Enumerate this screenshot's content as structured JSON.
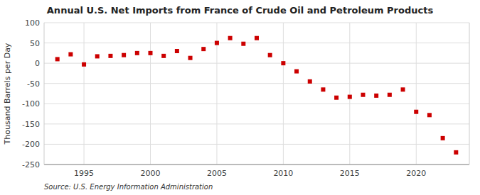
{
  "chart_data": {
    "type": "scatter",
    "title": "Annual U.S. Net Imports from France of Crude Oil and Petroleum Products",
    "y_label": "Thousand Barrels per Day",
    "source": "Source: U.S. Energy Information Administration",
    "x": [
      1993,
      1994,
      1995,
      1996,
      1997,
      1998,
      1999,
      2000,
      2001,
      2002,
      2003,
      2004,
      2005,
      2006,
      2007,
      2008,
      2009,
      2010,
      2011,
      2012,
      2013,
      2014,
      2015,
      2016,
      2017,
      2018,
      2019,
      2020,
      2021,
      2022,
      2023
    ],
    "values": [
      10,
      22,
      -3,
      17,
      18,
      20,
      25,
      25,
      18,
      30,
      13,
      35,
      50,
      62,
      48,
      62,
      20,
      0,
      -20,
      -45,
      -65,
      -85,
      -83,
      -78,
      -80,
      -78,
      -65,
      -120,
      -128,
      -185,
      -220
    ],
    "color": "#cc0000",
    "marker": "square",
    "xlim": [
      1992,
      2024
    ],
    "xticks": [
      1995,
      2000,
      2005,
      2010,
      2015,
      2020
    ],
    "ylim": [
      -250,
      100
    ],
    "yticks": [
      -250,
      -200,
      -150,
      -100,
      -50,
      0,
      50,
      100
    ],
    "grid": true
  }
}
